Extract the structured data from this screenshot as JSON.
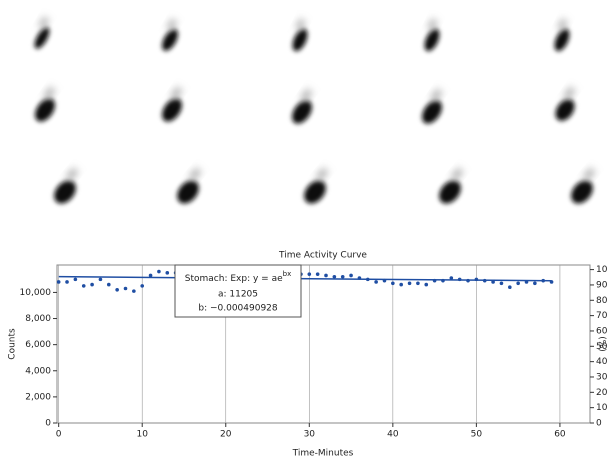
{
  "chart_data": {
    "type": "scatter",
    "title": "Time Activity Curve",
    "x_label": "Time-Minutes",
    "y_label": "Counts",
    "y2_label": "(%)",
    "x": [
      0,
      1,
      2,
      3,
      4,
      5,
      6,
      7,
      8,
      9,
      10,
      11,
      12,
      13,
      14,
      15,
      16,
      17,
      18,
      19,
      20,
      21,
      22,
      23,
      24,
      25,
      26,
      27,
      28,
      29,
      30,
      31,
      32,
      33,
      34,
      35,
      36,
      37,
      38,
      39,
      40,
      41,
      42,
      43,
      44,
      45,
      46,
      47,
      48,
      49,
      50,
      51,
      52,
      53,
      54,
      55,
      56,
      57,
      58,
      59
    ],
    "series": [
      {
        "name": "Stomach",
        "color": "#1f4ea3",
        "values": [
          10800,
          10800,
          11000,
          10500,
          10600,
          11000,
          10600,
          10200,
          10300,
          10100,
          10500,
          11300,
          11600,
          11500,
          11500,
          11400,
          11200,
          11300,
          11100,
          11200,
          11000,
          11300,
          11100,
          11200,
          11000,
          11100,
          11200,
          11000,
          11100,
          11400,
          11400,
          11400,
          11300,
          11200,
          11200,
          11300,
          11100,
          11000,
          10800,
          10900,
          10700,
          10600,
          10700,
          10700,
          10600,
          10900,
          10900,
          11100,
          11000,
          10900,
          11000,
          10900,
          10800,
          10700,
          10400,
          10700,
          10800,
          10700,
          10900,
          10800
        ]
      }
    ],
    "fit": {
      "color": "#1f4ea3",
      "x": [
        0,
        59
      ],
      "values": [
        11205,
        10891
      ]
    },
    "annotation": {
      "title": "Stomach: Exp: y = ae",
      "superscript": "bx",
      "a": "a: 11205",
      "b": "b: −0.000490928"
    },
    "xlim": [
      -0.2,
      63.6
    ],
    "xticks": [
      0,
      10,
      20,
      30,
      40,
      50,
      60
    ],
    "ylim": [
      0,
      12100
    ],
    "yticks": [
      0,
      {
        "value": 2000,
        "label": "2,000"
      },
      {
        "value": 4000,
        "label": "4,000"
      },
      {
        "value": 6000,
        "label": "6,000"
      },
      {
        "value": 8000,
        "label": "8,000"
      },
      {
        "value": 10000,
        "label": "10,000"
      }
    ],
    "y2lim": [
      0,
      103
    ],
    "y2ticks": [
      0,
      10,
      20,
      30,
      40,
      50,
      60,
      70,
      80,
      90,
      100
    ],
    "grid": "x"
  }
}
